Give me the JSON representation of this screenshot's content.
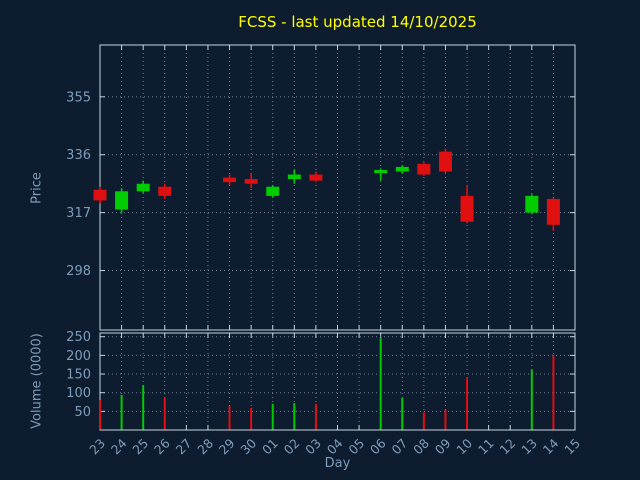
{
  "chart_data": {
    "type": "candlestick",
    "title": "FCSS - last updated 14/10/2025",
    "xlabel": "Day",
    "grid": "dotted",
    "price_axis": {
      "label": "Price",
      "ticks": [
        298,
        317,
        336,
        355
      ],
      "min": 278.5,
      "max": 372
    },
    "volume_axis": {
      "label": "Volume (0000)",
      "ticks": [
        50,
        100,
        150,
        200,
        250
      ],
      "min": 0,
      "max": 260
    },
    "x_ticks": [
      "23",
      "24",
      "25",
      "26",
      "27",
      "28",
      "29",
      "30",
      "01",
      "02",
      "03",
      "04",
      "05",
      "06",
      "07",
      "08",
      "09",
      "10",
      "11",
      "12",
      "13",
      "14",
      "15"
    ],
    "candles": [
      {
        "day": "23",
        "open": 324.5,
        "high": 325.5,
        "low": 320.0,
        "close": 321.0,
        "volume": 80
      },
      {
        "day": "24",
        "open": 318.0,
        "high": 325.0,
        "low": 317.0,
        "close": 324.0,
        "volume": 94
      },
      {
        "day": "25",
        "open": 324.0,
        "high": 327.5,
        "low": 323.5,
        "close": 326.5,
        "volume": 120
      },
      {
        "day": "26",
        "open": 325.5,
        "high": 326.5,
        "low": 321.5,
        "close": 322.5,
        "volume": 86
      },
      {
        "day": "29",
        "open": 328.5,
        "high": 329.5,
        "low": 326.0,
        "close": 327.0,
        "volume": 64
      },
      {
        "day": "30",
        "open": 328.0,
        "high": 330.0,
        "low": 325.0,
        "close": 326.5,
        "volume": 59
      },
      {
        "day": "01",
        "open": 322.5,
        "high": 326.0,
        "low": 322.0,
        "close": 325.5,
        "volume": 70
      },
      {
        "day": "02",
        "open": 328.0,
        "high": 331.0,
        "low": 326.5,
        "close": 329.5,
        "volume": 72
      },
      {
        "day": "03",
        "open": 329.5,
        "high": 330.5,
        "low": 327.0,
        "close": 327.5,
        "volume": 70
      },
      {
        "day": "06",
        "open": 330.0,
        "high": 331.5,
        "low": 327.5,
        "close": 331.0,
        "volume": 246
      },
      {
        "day": "07",
        "open": 330.5,
        "high": 332.5,
        "low": 330.0,
        "close": 332.0,
        "volume": 86
      },
      {
        "day": "08",
        "open": 333.0,
        "high": 333.5,
        "low": 329.0,
        "close": 329.5,
        "volume": 48
      },
      {
        "day": "09",
        "open": 337.0,
        "high": 338.0,
        "low": 330.0,
        "close": 330.5,
        "volume": 54
      },
      {
        "day": "10",
        "open": 322.5,
        "high": 326.0,
        "low": 313.5,
        "close": 314.0,
        "volume": 139
      },
      {
        "day": "13",
        "open": 317.0,
        "high": 323.0,
        "low": 316.5,
        "close": 322.5,
        "volume": 161
      },
      {
        "day": "14",
        "open": 321.5,
        "high": 322.0,
        "low": 311.0,
        "close": 313.0,
        "volume": 201
      }
    ],
    "colors": {
      "up": "#00cc00",
      "down": "#e01010",
      "background": "#0d1c2e",
      "title": "#ffff00",
      "axis_text": "#7f9db9",
      "border": "#c9d5e3",
      "grid": "#73839a"
    }
  }
}
